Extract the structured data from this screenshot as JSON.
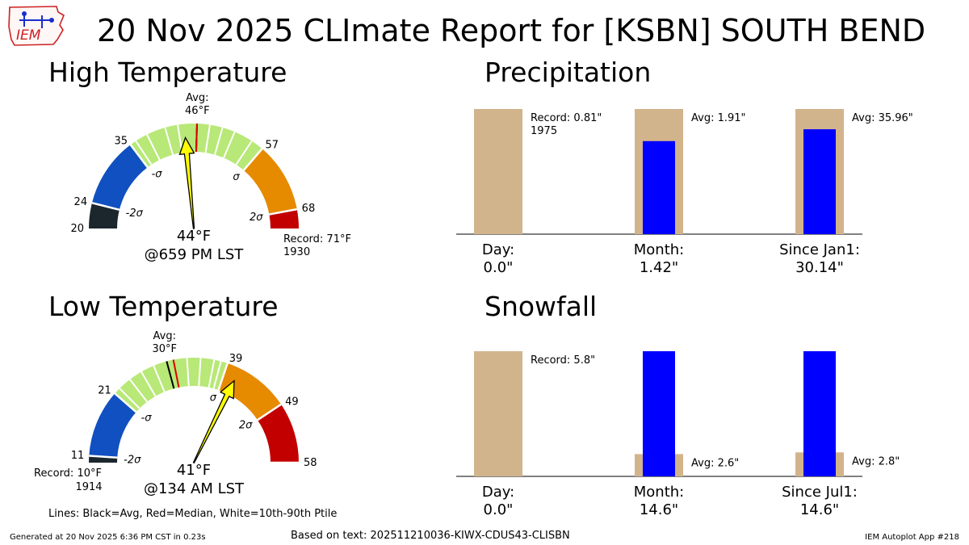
{
  "title": "20 Nov 2025 CLImate Report for [KSBN] SOUTH BEND",
  "logo_text": "IEM",
  "footer": {
    "generated": "Generated at 20 Nov 2025 6:36 PM CST in 0.23s",
    "source": "Based on text: 202511210036-KIWX-CDUS43-CLISBN",
    "app": "IEM Autoplot App #218"
  },
  "lines_note": "Lines: Black=Avg, Red=Median, White=10th-90th Ptile",
  "colors": {
    "record_low": "#1c262d",
    "below_2s": "#1050c0",
    "near_avg": "#b8e878",
    "above_1s": "#e68a00",
    "record_high": "#c20000",
    "needle": "#ffff00",
    "bar_tan": "#d2b48c",
    "bar_blue": "#0000ff",
    "median_line": "#dd0000"
  },
  "chart_data": [
    {
      "type": "gauge",
      "title": "High Temperature",
      "range": [
        20,
        71
      ],
      "bands": [
        {
          "from": 20,
          "to": 24,
          "color": "#1c262d"
        },
        {
          "from": 24,
          "to": 35,
          "color": "#1050c0"
        },
        {
          "from": 35,
          "to": 57,
          "color": "#b8e878"
        },
        {
          "from": 57,
          "to": 68,
          "color": "#e68a00"
        },
        {
          "from": 68,
          "to": 71,
          "color": "#c20000"
        }
      ],
      "tick_values": [
        20,
        24,
        35,
        57,
        68
      ],
      "sigma_markers": [
        {
          "label": "-2σ",
          "value": 24
        },
        {
          "label": "-σ",
          "value": 35
        },
        {
          "label": "σ",
          "value": 57
        },
        {
          "label": "2σ",
          "value": 68
        }
      ],
      "avg_label": "Avg:",
      "avg_value": "46°F",
      "avg": 46,
      "median": 46,
      "percentile_lines": [
        36,
        38,
        41,
        43,
        48,
        50,
        52,
        55
      ],
      "observed": 44,
      "observed_label": "44°F",
      "observed_time": "@659 PM LST",
      "record_label": "Record: 71°F",
      "record_year": "1930",
      "record_side": "high"
    },
    {
      "type": "bar",
      "title": "Precipitation",
      "categories": [
        "Day:",
        "Month:",
        "Since Jan1:"
      ],
      "observed": [
        0.0,
        1.42,
        30.14
      ],
      "observed_labels": [
        "0.0\"",
        "1.42\"",
        "30.14\""
      ],
      "reference": [
        0.81,
        1.91,
        35.96
      ],
      "reference_labels": [
        "Record: 0.81\"",
        "Avg: 1.91\"",
        "Avg: 35.96\""
      ],
      "reference_sublabels": [
        "1975",
        "",
        ""
      ],
      "normalized": true
    },
    {
      "type": "gauge",
      "title": "Low Temperature",
      "range": [
        10,
        58
      ],
      "bands": [
        {
          "from": 10,
          "to": 11,
          "color": "#1c262d"
        },
        {
          "from": 11,
          "to": 21,
          "color": "#1050c0"
        },
        {
          "from": 21,
          "to": 39,
          "color": "#b8e878"
        },
        {
          "from": 39,
          "to": 49,
          "color": "#e68a00"
        },
        {
          "from": 49,
          "to": 58,
          "color": "#c20000"
        }
      ],
      "tick_values": [
        11,
        21,
        39,
        49,
        58
      ],
      "sigma_markers": [
        {
          "label": "-2σ",
          "value": 11
        },
        {
          "label": "-σ",
          "value": 21
        },
        {
          "label": "σ",
          "value": 39
        },
        {
          "label": "2σ",
          "value": 49
        }
      ],
      "avg_label": "Avg:",
      "avg_value": "30°F",
      "avg": 30,
      "median": 31,
      "percentile_lines": [
        22,
        24,
        26,
        28,
        33,
        35,
        37,
        38
      ],
      "observed": 41,
      "observed_label": "41°F",
      "observed_time": "@134 AM LST",
      "record_label": "Record: 10°F",
      "record_year": "1914",
      "record_side": "low"
    },
    {
      "type": "bar",
      "title": "Snowfall",
      "categories": [
        "Day:",
        "Month:",
        "Since Jul1:"
      ],
      "observed": [
        0.0,
        14.6,
        14.6
      ],
      "observed_labels": [
        "0.0\"",
        "14.6\"",
        "14.6\""
      ],
      "reference": [
        5.8,
        2.6,
        2.8
      ],
      "reference_labels": [
        "Record: 5.8\"",
        "Avg: 2.6\"",
        "Avg: 2.8\""
      ],
      "reference_sublabels": [
        "",
        "",
        ""
      ],
      "normalized": true
    }
  ]
}
